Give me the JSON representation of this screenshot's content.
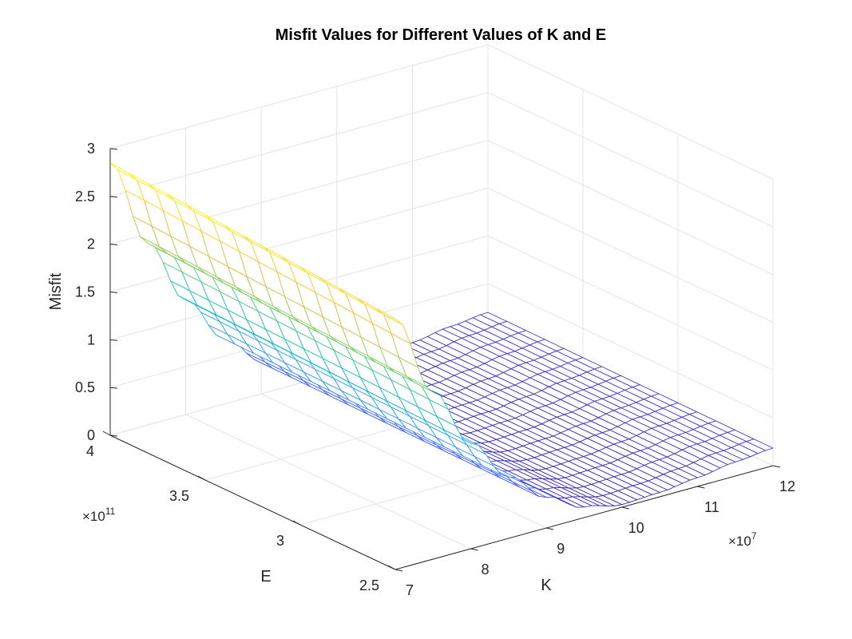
{
  "chart_data": {
    "type": "surface-mesh",
    "title": "Misfit Values for Different Values of K and E",
    "xlabel": "K",
    "ylabel": "E",
    "zlabel": "Misfit",
    "x_multiplier": "×10",
    "x_exponent": "7",
    "y_multiplier": "×10",
    "y_exponent": "11",
    "xlim": [
      7,
      12
    ],
    "ylim": [
      2.5,
      4
    ],
    "zlim": [
      0,
      3
    ],
    "x_ticks": [
      "7",
      "8",
      "9",
      "10",
      "11",
      "12"
    ],
    "y_ticks": [
      "2.5",
      "3",
      "3.5",
      "4"
    ],
    "z_ticks": [
      "0",
      "0.5",
      "1",
      "1.5",
      "2",
      "2.5",
      "3"
    ],
    "grid": true,
    "colormap": "parula",
    "colormap_colors": [
      "#3e26a8",
      "#4367fd",
      "#2ea3f5",
      "#14c0b4",
      "#7ed25f",
      "#f4b93f",
      "#f9fb0e"
    ],
    "approx_surface": {
      "description_values": "misfit ≈ 2.85 at K=7e7, decreasing to ~0.05 at K≈10e7, rising to ~0.2 at K=12e7; nearly constant along E",
      "K_values_e7": [
        7.0,
        7.5,
        8.0,
        8.5,
        9.0,
        9.5,
        10.0,
        10.5,
        11.0,
        11.5,
        12.0
      ],
      "misfit_values": [
        2.85,
        1.9,
        1.2,
        0.7,
        0.35,
        0.12,
        0.03,
        0.05,
        0.1,
        0.16,
        0.2
      ]
    }
  }
}
